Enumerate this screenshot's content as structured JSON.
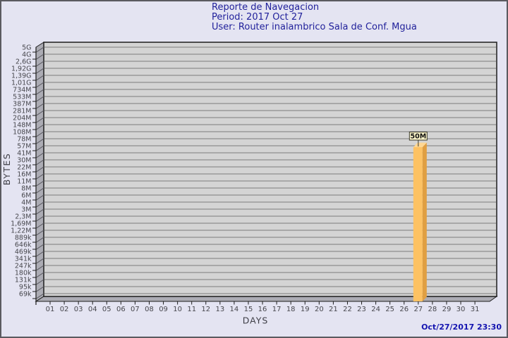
{
  "header": {
    "title": "Reporte de Navegacion",
    "period": "Period: 2017 Oct 27",
    "user": "User: Router inalambrico Sala de Conf. Mgua"
  },
  "footer": {
    "generated": "Oct/27/2017 23:30"
  },
  "chart_data": {
    "type": "bar",
    "title": "Reporte de Navegacion",
    "xlabel": "DAYS",
    "ylabel": "BYTES",
    "y_scale": "log",
    "grid": true,
    "legend_position": "none",
    "x_tick_labels": [
      "01",
      "02",
      "03",
      "04",
      "05",
      "06",
      "07",
      "08",
      "09",
      "10",
      "11",
      "12",
      "13",
      "14",
      "15",
      "16",
      "17",
      "18",
      "19",
      "20",
      "21",
      "22",
      "23",
      "24",
      "25",
      "26",
      "27",
      "28",
      "29",
      "30",
      "31"
    ],
    "y_tick_labels": [
      "5G",
      "4G",
      "2,6G",
      "1,92G",
      "1,39G",
      "1,01G",
      "734M",
      "533M",
      "387M",
      "281M",
      "204M",
      "148M",
      "108M",
      "78M",
      "57M",
      "41M",
      "30M",
      "22M",
      "16M",
      "11M",
      "8M",
      "6M",
      "4M",
      "3M",
      "2,3M",
      "1,69M",
      "1,22M",
      "889k",
      "646k",
      "469k",
      "341k",
      "247k",
      "180k",
      "131k",
      "95k",
      "69k"
    ],
    "bars": [
      {
        "day": "27",
        "value_label": "50M",
        "approx_bytes": 50000000
      }
    ]
  },
  "colors": {
    "background": "#e4e4f2",
    "page_border": "#5a5a60",
    "title_text": "#21219b",
    "timestamp_text": "#1414b0",
    "plot_fill": "#d4d4d4",
    "grid_line": "#7b7b7b",
    "wall_fill": "#acacb4",
    "wall_line": "#55555c",
    "outline": "#1c1c1c",
    "axis_text": "#3e3e46",
    "tick_text": "#47474d",
    "bar_front": "#fdc263",
    "bar_side": "#e09f42",
    "bar_top": "#fed794",
    "flag_fill": "#faf3c8",
    "flag_border": "#3a3a2e",
    "flag_text": "#101010"
  }
}
